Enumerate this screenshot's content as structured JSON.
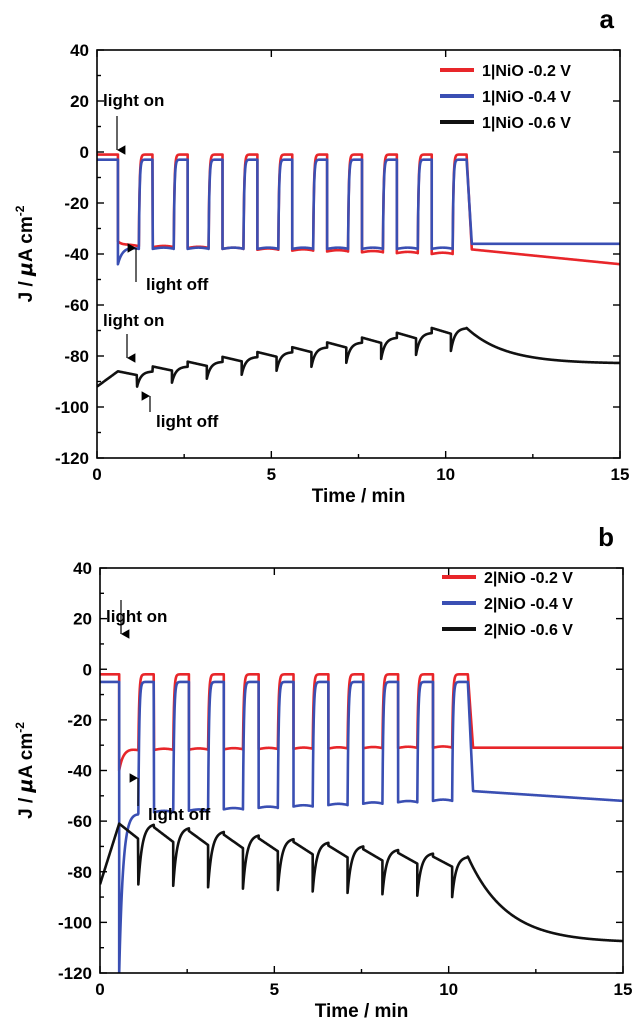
{
  "chart_data": [
    {
      "type": "line",
      "panel_label": "a",
      "xlabel": "Time / min",
      "ylabel": "J / μA cm⁻²",
      "ylabel_parts": {
        "main": "J / ",
        "mu": "μ",
        "unit": "A cm",
        "sup": "-2"
      },
      "xlim": [
        0,
        15
      ],
      "ylim": [
        -120,
        40
      ],
      "xticks": [
        "0",
        "5",
        "10",
        "15"
      ],
      "yticks": [
        "40",
        "20",
        "0",
        "-20",
        "-40",
        "-60",
        "-80",
        "-100",
        "-120"
      ],
      "legend_position": "top-right",
      "series": [
        {
          "name": "1|NiO -0.2 V",
          "color": "#e8262a",
          "model": {
            "type": "square",
            "dark": -1,
            "light_start": -37,
            "light_end": -40,
            "first_on": 0.6,
            "period": 1.0,
            "on_duration": 0.6,
            "cycles": 10,
            "tail_start": -38,
            "tail_end": -44,
            "first_light_level": -35,
            "end": 15
          },
          "values": [
            [
              0,
              -1
            ],
            [
              0.6,
              -1
            ],
            [
              0.62,
              -35
            ],
            [
              1.2,
              -37
            ],
            [
              1.25,
              -1
            ],
            [
              1.6,
              -1
            ],
            [
              1.62,
              -37
            ],
            [
              2.2,
              -39
            ],
            [
              2.25,
              -1
            ],
            [
              10.35,
              -1
            ],
            [
              10.4,
              -38
            ],
            [
              15,
              -44
            ]
          ]
        },
        {
          "name": "1|NiO -0.4 V",
          "color": "#3a4fb3",
          "model": {
            "type": "square",
            "dark": -3,
            "light_start": -38,
            "light_end": -38,
            "first_on": 0.6,
            "period": 1.0,
            "on_duration": 0.6,
            "cycles": 10,
            "tail_start": -36,
            "tail_end": -36,
            "first_light_level": -44,
            "end": 15
          },
          "values": [
            [
              0,
              -4
            ],
            [
              0.6,
              -4
            ],
            [
              0.65,
              -44
            ],
            [
              1.2,
              -40
            ],
            [
              1.3,
              -3
            ],
            [
              1.6,
              -3
            ],
            [
              1.65,
              -38
            ],
            [
              10.35,
              -3
            ],
            [
              10.45,
              -36
            ],
            [
              15,
              -36
            ]
          ]
        },
        {
          "name": "1|NiO -0.6 V",
          "color": "#111111",
          "model": {
            "type": "sawtooth",
            "first_on": 0.6,
            "period": 1.0,
            "on_duration": 0.55,
            "cycles": 10,
            "low_start": -92,
            "low_end": -78,
            "high_start": -86,
            "high_end": -69,
            "drift_up": 2.0,
            "tail_end": -83,
            "end": 15
          },
          "values": [
            [
              0,
              -92
            ],
            [
              0.6,
              -86
            ],
            [
              0.7,
              -84
            ],
            [
              0.9,
              -85
            ],
            [
              1.0,
              -92
            ],
            [
              1.6,
              -90
            ],
            [
              10.5,
              -79
            ],
            [
              10.8,
              -69
            ],
            [
              12,
              -76
            ],
            [
              15,
              -83
            ]
          ]
        }
      ],
      "annotations": [
        {
          "text": "light on",
          "x": 0.65,
          "y": 4
        },
        {
          "text": "light off",
          "x": 1.05,
          "y": -52
        },
        {
          "text": "light on",
          "x": 0.95,
          "y": -84
        },
        {
          "text": "light off",
          "x": 1.6,
          "y": -94
        }
      ]
    },
    {
      "type": "line",
      "panel_label": "b",
      "xlabel": "Time / min",
      "ylabel": "J / μA cm⁻²",
      "ylabel_parts": {
        "main": "J / ",
        "mu": "μ",
        "unit": "A cm",
        "sup": "-2"
      },
      "xlim": [
        0,
        15
      ],
      "ylim": [
        -120,
        40
      ],
      "xticks": [
        "0",
        "5",
        "10",
        "15"
      ],
      "yticks": [
        "40",
        "20",
        "0",
        "-20",
        "-40",
        "-60",
        "-80",
        "-100",
        "-120"
      ],
      "legend_position": "top-right",
      "series": [
        {
          "name": "2|NiO -0.2 V",
          "color": "#e8262a",
          "model": {
            "type": "square",
            "dark": -2,
            "light_start": -32,
            "light_end": -31,
            "first_on": 0.55,
            "period": 1.0,
            "on_duration": 0.55,
            "cycles": 10,
            "tail_start": -31,
            "tail_end": -31,
            "first_light_level": -40,
            "end": 15
          },
          "values": [
            [
              0,
              -2
            ],
            [
              0.55,
              -2
            ],
            [
              0.6,
              -60
            ],
            [
              1.2,
              -33
            ],
            [
              1.25,
              -2
            ],
            [
              10.45,
              -2
            ],
            [
              10.5,
              -31
            ],
            [
              15,
              -31
            ]
          ]
        },
        {
          "name": "2|NiO -0.4 V",
          "color": "#3a4fb3",
          "model": {
            "type": "square",
            "dark": -5,
            "light_start": -57,
            "light_end": -52,
            "first_on": 0.55,
            "period": 1.0,
            "on_duration": 0.55,
            "cycles": 10,
            "tail_start": -48,
            "tail_end": -52,
            "first_light_level": -120,
            "end": 15
          },
          "values": [
            [
              0,
              -9
            ],
            [
              0.55,
              -9
            ],
            [
              0.6,
              -120
            ],
            [
              0.75,
              -72
            ],
            [
              1.2,
              -57
            ],
            [
              1.3,
              -5
            ],
            [
              10.45,
              -5
            ],
            [
              10.55,
              -48
            ],
            [
              15,
              -52
            ]
          ]
        },
        {
          "name": "2|NiO -0.6 V",
          "color": "#111111",
          "model": {
            "type": "sawtooth",
            "first_on": 0.55,
            "period": 1.0,
            "on_duration": 0.55,
            "cycles": 10,
            "low_start": -85,
            "low_end": -90,
            "high_start": -61,
            "high_end": -74,
            "drift_up": 0,
            "tail_end": -108,
            "end": 15
          },
          "values": [
            [
              0,
              -60
            ],
            [
              0.55,
              -59
            ],
            [
              0.6,
              -72
            ],
            [
              1.0,
              -76
            ],
            [
              1.4,
              -61
            ],
            [
              10.5,
              -74
            ],
            [
              11,
              -84
            ],
            [
              15,
              -108
            ]
          ]
        }
      ],
      "annotations": [
        {
          "text": "light on",
          "x": 0.55,
          "y": 11
        },
        {
          "text": "light off",
          "x": 1.05,
          "y": -90
        }
      ]
    }
  ]
}
